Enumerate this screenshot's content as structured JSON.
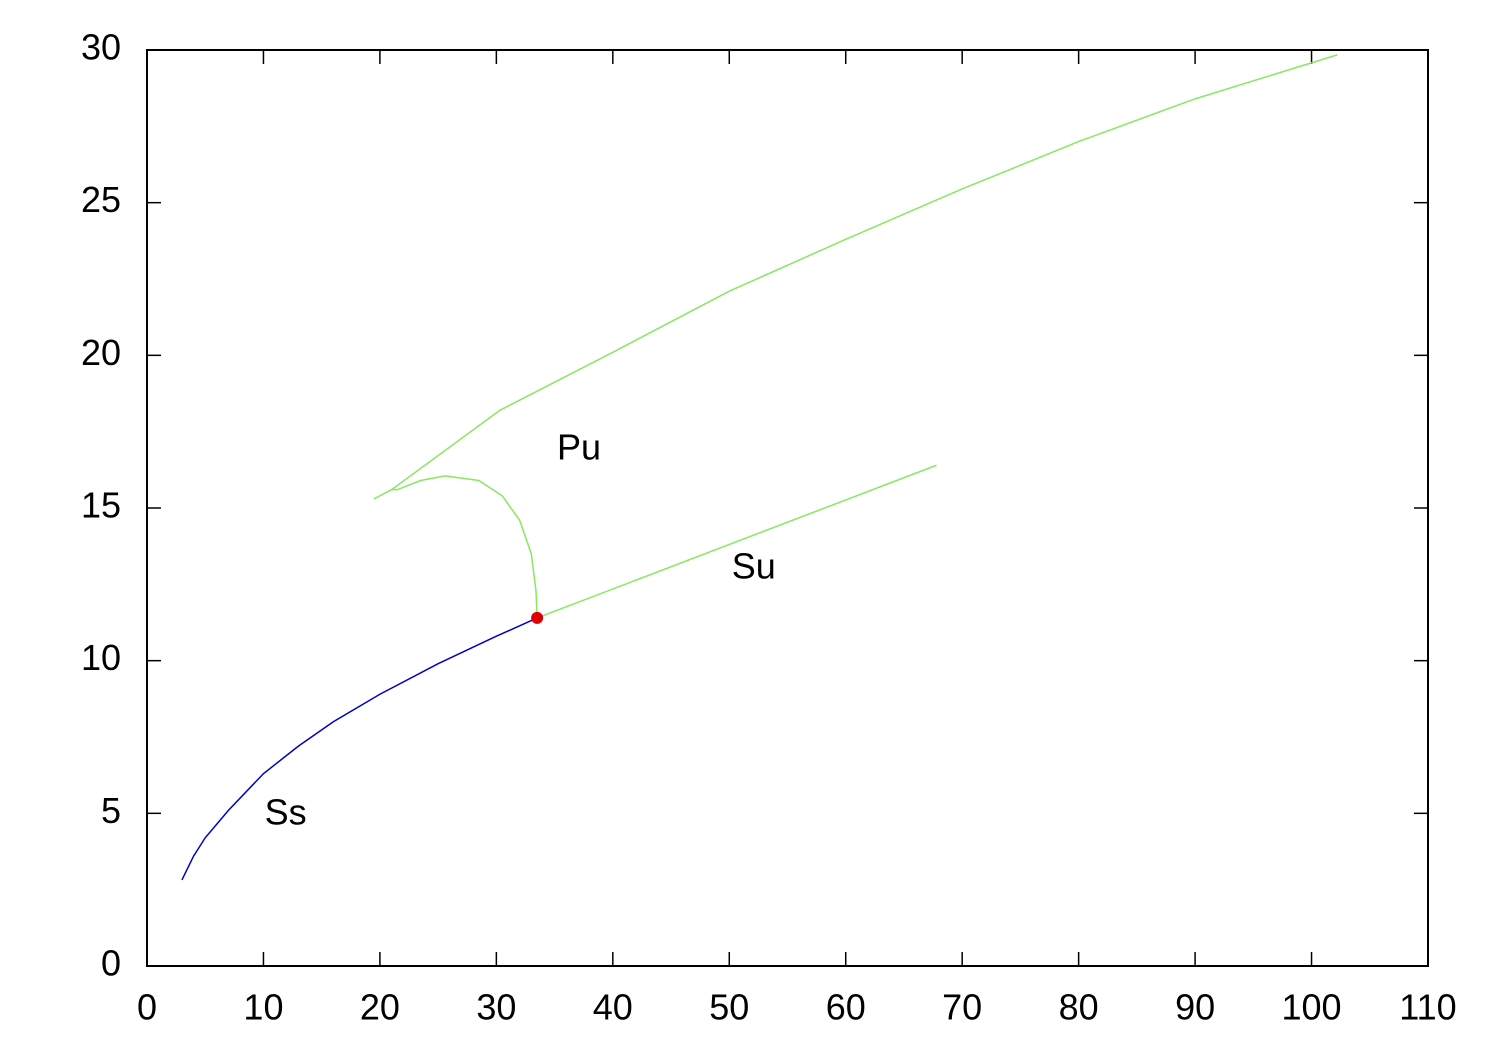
{
  "chart_data": {
    "type": "line",
    "xlim": [
      0,
      110
    ],
    "xticks": [
      0,
      10,
      20,
      30,
      40,
      50,
      60,
      70,
      80,
      90,
      100,
      110
    ],
    "ylim": [
      0,
      30
    ],
    "yticks": [
      0,
      5,
      10,
      15,
      20,
      25,
      30
    ],
    "grid": false,
    "series": [
      {
        "color": "#0000cc",
        "x": [
          3,
          4,
          5,
          7,
          10,
          13,
          16,
          20,
          25,
          30,
          33.5
        ],
        "values": [
          2.82,
          3.6,
          4.2,
          5.1,
          6.3,
          7.2,
          8.0,
          8.9,
          9.9,
          10.8,
          11.4
        ]
      },
      {
        "color": "#88e860",
        "x": [
          33.5,
          67.8
        ],
        "values": [
          11.4,
          16.4
        ]
      },
      {
        "color": "#88e860",
        "x": [
          33.5,
          33.4,
          33.0,
          32.0,
          30.5,
          28.5,
          25.6,
          23.5,
          21.5,
          20.9
        ],
        "values": [
          11.4,
          12.3,
          13.5,
          14.6,
          15.4,
          15.9,
          16.05,
          15.9,
          15.6,
          15.6
        ]
      },
      {
        "color": "#88e860",
        "x": [
          19.5,
          21,
          30.3,
          40,
          50,
          60,
          70,
          80,
          90,
          102.2
        ],
        "values": [
          15.3,
          15.6,
          18.2,
          20.1,
          22.1,
          23.8,
          25.45,
          27.0,
          28.4,
          29.84
        ]
      }
    ],
    "points": [
      {
        "x": 33.5,
        "y": 11.4,
        "color": "#dd0000"
      }
    ],
    "annotations": [
      {
        "text": "Ss",
        "x": 11.9,
        "y": 4.95
      },
      {
        "text": "Pu",
        "x": 37.1,
        "y": 16.9
      },
      {
        "text": "Su",
        "x": 52.1,
        "y": 13.0
      }
    ]
  }
}
